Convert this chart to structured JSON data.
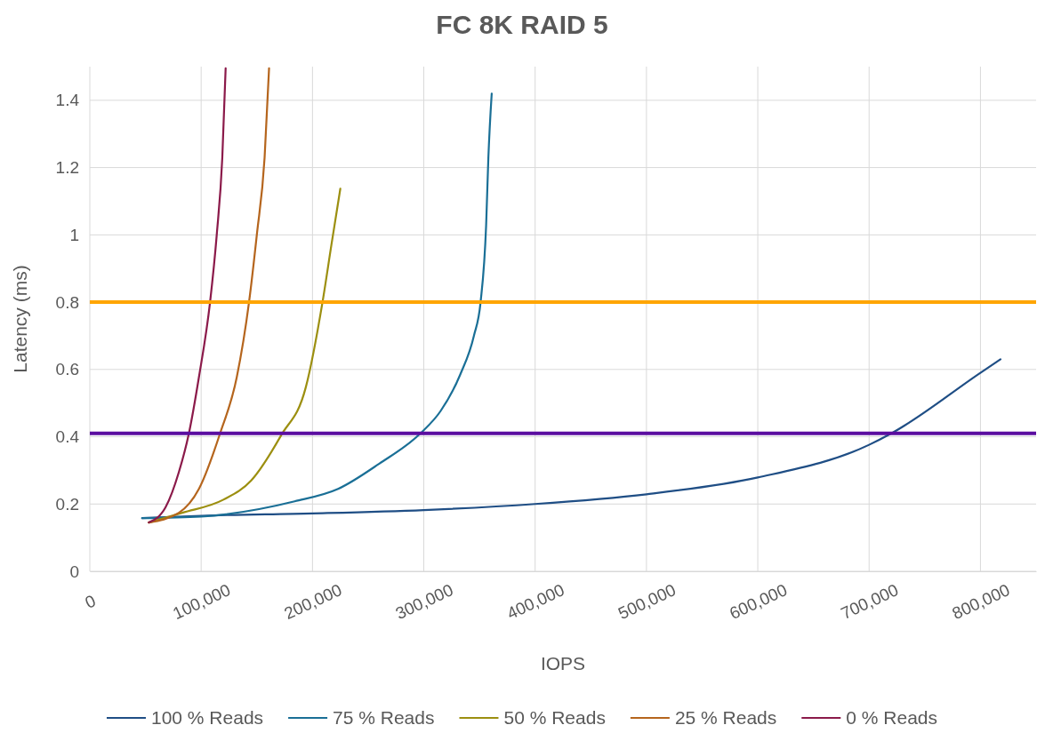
{
  "chart_data": {
    "type": "line",
    "title": "FC 8K RAID 5",
    "xlabel": "IOPS",
    "ylabel": "Latency (ms)",
    "xlim": [
      0,
      850000
    ],
    "ylim": [
      0,
      1.5
    ],
    "xticks": [
      0,
      {
        "value": 100000,
        "label": "100,000"
      },
      {
        "value": 200000,
        "label": "200,000"
      },
      {
        "value": 300000,
        "label": "300,000"
      },
      {
        "value": 400000,
        "label": "400,000"
      },
      {
        "value": 500000,
        "label": "500,000"
      },
      {
        "value": 600000,
        "label": "600,000"
      },
      {
        "value": 700000,
        "label": "700,000"
      },
      {
        "value": 800000,
        "label": "800,000"
      }
    ],
    "yticks": [
      0,
      0.2,
      0.4,
      0.6,
      0.8,
      1,
      1.2,
      1.4
    ],
    "grid": true,
    "legend": "bottom",
    "line_style": "solid",
    "series": [
      {
        "name": "100 % Reads",
        "color": "#1f4e85",
        "x": [
          47000,
          100000,
          200000,
          300000,
          400000,
          500000,
          600000,
          700000,
          720000,
          800000,
          818000
        ],
        "values": [
          0.158,
          0.165,
          0.172,
          0.182,
          0.2,
          0.229,
          0.279,
          0.376,
          0.41,
          0.59,
          0.63
        ]
      },
      {
        "name": "75 % Reads",
        "color": "#1a6f96",
        "x": [
          47000,
          100000,
          184000,
          223000,
          260000,
          297000,
          315000,
          333000,
          345000,
          351000,
          356000,
          358000,
          361000
        ],
        "values": [
          0.158,
          0.163,
          0.208,
          0.245,
          0.32,
          0.41,
          0.476,
          0.587,
          0.7,
          0.8,
          1.03,
          1.23,
          1.42
        ]
      },
      {
        "name": "50 % Reads",
        "color": "#9c8f10",
        "x": [
          53000,
          83000,
          120000,
          145000,
          172000,
          194000,
          209000,
          217000,
          225000
        ],
        "values": [
          0.145,
          0.174,
          0.213,
          0.27,
          0.405,
          0.547,
          0.8,
          0.97,
          1.137
        ]
      },
      {
        "name": "25 % Reads",
        "color": "#b5651d",
        "x": [
          53000,
          80000,
          98000,
          117000,
          132000,
          143000,
          150000,
          157000,
          161000
        ],
        "values": [
          0.145,
          0.174,
          0.245,
          0.41,
          0.577,
          0.8,
          1.0,
          1.23,
          1.495
        ]
      },
      {
        "name": "0 % Reads",
        "color": "#8b1a4a",
        "x": [
          53000,
          68000,
          80000,
          89000,
          98000,
          108000,
          114000,
          119000,
          122000
        ],
        "values": [
          0.145,
          0.19,
          0.295,
          0.41,
          0.577,
          0.8,
          1.0,
          1.23,
          1.495
        ]
      }
    ],
    "ref_lines": [
      {
        "axis": "y",
        "value": 0.8,
        "color": "#ffa500"
      },
      {
        "axis": "y",
        "value": 0.41,
        "color": "#5b0ea0"
      }
    ]
  }
}
